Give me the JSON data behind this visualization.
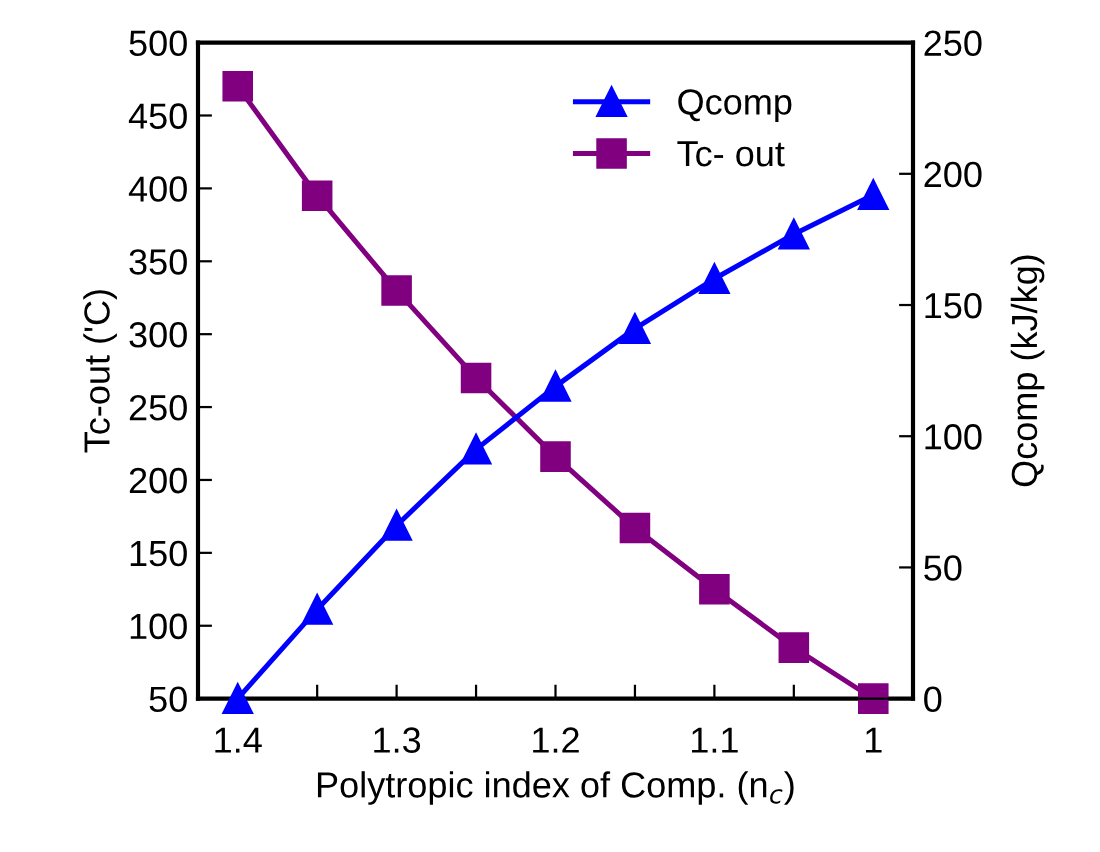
{
  "chart_data": {
    "type": "line",
    "xlabel": "Polytropic index of Comp. (n$_{c}$)",
    "ylabel": "Tc-out ('C)",
    "y2label": "Qcomp (kJ/kg)",
    "x": [
      1.4,
      1.35,
      1.3,
      1.25,
      1.2,
      1.15,
      1.1,
      1.05,
      1.0
    ],
    "series": [
      {
        "name": "Qcomp",
        "color": "#0000ff",
        "axis": "y2",
        "marker": "triangle",
        "values": [
          0,
          34,
          66,
          95,
          119,
          141,
          160,
          177,
          192
        ]
      },
      {
        "name": "Tc- out",
        "color": "#800080",
        "marker": "square",
        "values": [
          470,
          395,
          330,
          270,
          216,
          167,
          125,
          85,
          50
        ]
      }
    ],
    "xlim": [
      1.425,
      0.975
    ],
    "xticks": [
      1.4,
      {
        "value": 1.35,
        "label": null
      },
      1.3,
      {
        "value": 1.25,
        "label": null
      },
      1.2,
      {
        "value": 1.15,
        "label": null
      },
      1.1,
      {
        "value": 1.05,
        "label": null
      },
      {
        "value": 1.0,
        "label": "1"
      }
    ],
    "ylim": [
      50,
      500
    ],
    "yticks": [
      50,
      100,
      150,
      200,
      250,
      300,
      350,
      400,
      450,
      500
    ],
    "y2lim": [
      0,
      250
    ],
    "y2ticks": [
      0,
      50,
      100,
      150,
      200,
      250
    ],
    "legend": "top right",
    "line_style": "solid",
    "grid": false
  }
}
